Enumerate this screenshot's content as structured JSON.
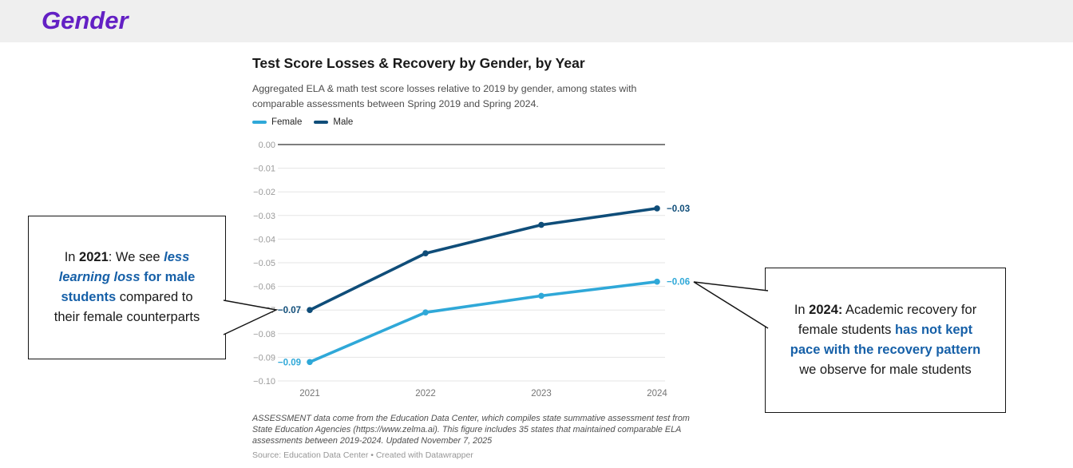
{
  "page": {
    "title": "Gender",
    "accent_color": "#6320C4",
    "band_color": "#EFEFEF"
  },
  "chart": {
    "title": "Test Score Losses & Recovery by Gender, by Year",
    "subtitle": "Aggregated ELA & math test score losses relative to 2019 by gender, among states with comparable assessments between Spring 2019 and Spring 2024.",
    "notes": "ASSESSMENT data come from the Education Data Center, which compiles state summative assessment test from State Education Agencies (https://www.zelma.ai). This figure includes 35 states that maintained comparable ELA assessments between 2019-2024. Updated November 7, 2025",
    "source": "Source: Education Data Center • Created with Datawrapper"
  },
  "chart_data": {
    "type": "line",
    "title": "Test Score Losses & Recovery by Gender, by Year",
    "x": [
      "2021",
      "2022",
      "2023",
      "2024"
    ],
    "series": [
      {
        "name": "Female",
        "color": "#2FA8D8",
        "values": [
          -0.092,
          -0.071,
          -0.064,
          -0.058
        ],
        "first_label": "−0.09",
        "last_label": "−0.06"
      },
      {
        "name": "Male",
        "color": "#0F4D79",
        "values": [
          -0.07,
          -0.046,
          -0.034,
          -0.027
        ],
        "first_label": "−0.07",
        "last_label": "−0.03"
      }
    ],
    "ylim": [
      -0.1,
      0.0
    ],
    "yticks": [
      "0.00",
      "−0.01",
      "−0.02",
      "−0.03",
      "−0.04",
      "−0.05",
      "−0.06",
      "−0.07",
      "−0.08",
      "−0.09",
      "−0.10"
    ],
    "grid": true,
    "legend_position": "top"
  },
  "colors": {
    "callout_blue": "#1660A8"
  },
  "callouts": {
    "left": {
      "segments": [
        {
          "text": "In ",
          "style": "normal"
        },
        {
          "text": "2021",
          "style": "bold"
        },
        {
          "text": ": We see ",
          "style": "normal"
        },
        {
          "text": "less learning loss",
          "style": "bold-italic-blue"
        },
        {
          "text": " for male students",
          "style": "bold-blue"
        },
        {
          "text": " compared to their female counterparts",
          "style": "normal"
        }
      ]
    },
    "right": {
      "segments": [
        {
          "text": "In ",
          "style": "normal"
        },
        {
          "text": "2024:",
          "style": "bold"
        },
        {
          "text": " Academic recovery for female students ",
          "style": "normal"
        },
        {
          "text": "has not kept pace with the recovery pattern",
          "style": "bold-blue"
        },
        {
          "text": " we observe for male students",
          "style": "normal"
        }
      ]
    }
  }
}
